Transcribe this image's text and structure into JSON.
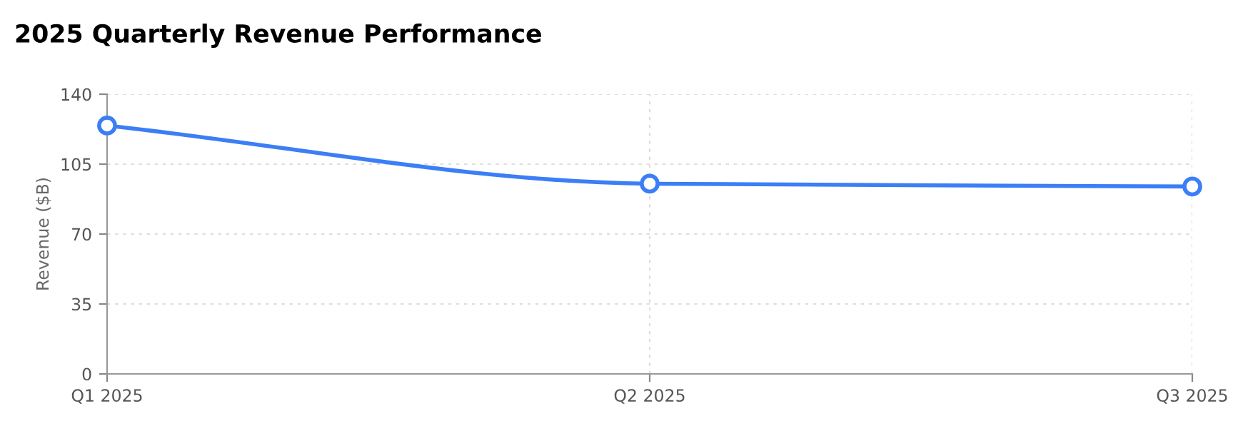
{
  "chart_data": {
    "type": "line",
    "title": "2025 Quarterly Revenue Performance",
    "ylabel": "Revenue ($B)",
    "categories": [
      "Q1 2025",
      "Q2 2025",
      "Q3 2025"
    ],
    "series": [
      {
        "color": "#3b7ef6",
        "values": [
          124.3,
          95.2,
          93.8
        ]
      }
    ],
    "ylim": [
      0,
      140
    ],
    "yticks": [
      0,
      35,
      70,
      105,
      140
    ],
    "grid": true,
    "marker": "circle",
    "line_style": "solid"
  }
}
